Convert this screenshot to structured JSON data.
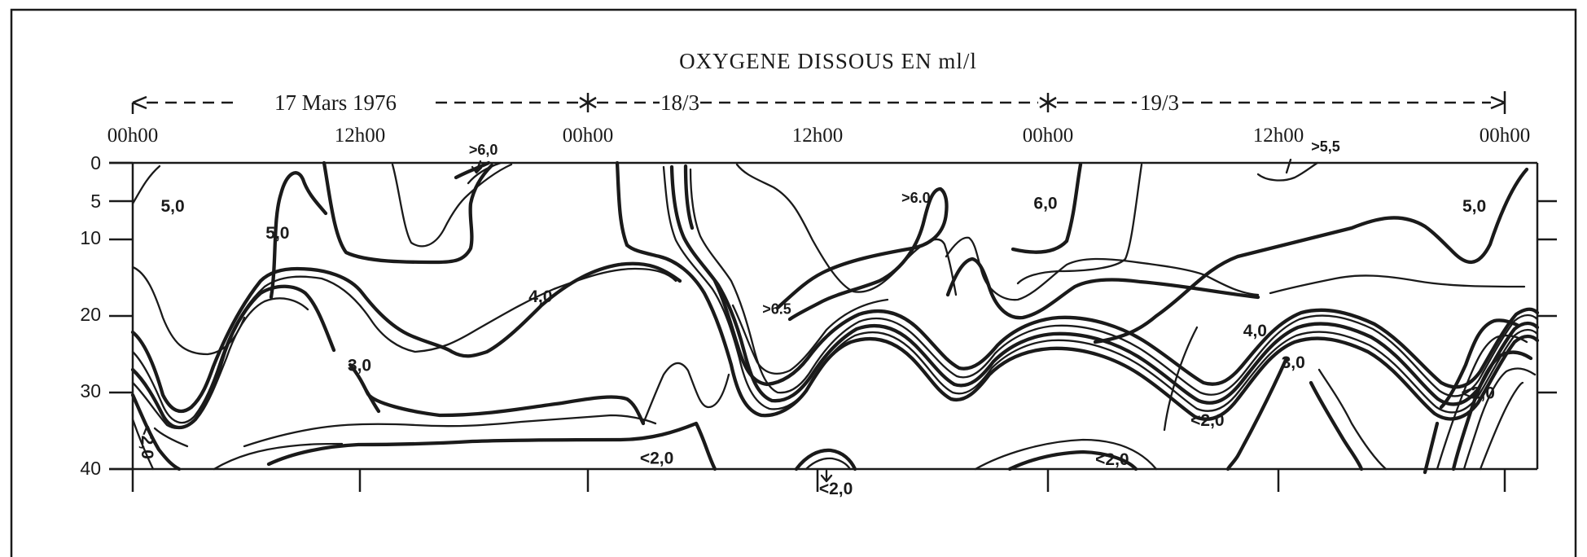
{
  "chart_data": {
    "type": "contour",
    "title": "OXYGENE DISSOUS EN ml/l",
    "date_headers": [
      "17 Mars 1976",
      "18/3",
      "19/3"
    ],
    "x_tick_labels": [
      "00h00",
      "12h00",
      "00h00",
      "12h00",
      "00h00",
      "12h00",
      "00h00"
    ],
    "x_hours": [
      0,
      12,
      24,
      36,
      48,
      60,
      72
    ],
    "xlim_hours": [
      0,
      72
    ],
    "y_tick_labels": [
      "0",
      "5",
      "10",
      "20",
      "30",
      "40"
    ],
    "y_depths": [
      0,
      5,
      10,
      20,
      30,
      40
    ],
    "ylim_depth": [
      0,
      40
    ],
    "y_inverted": true,
    "contour_labels": [
      {
        "text": "5,0",
        "hour": 7.6,
        "depth": 9.3
      },
      {
        "text": "5,0",
        "hour": 2.1,
        "depth": 5.8
      },
      {
        "text": "6,0",
        "hour": 47.9,
        "depth": 5.4
      },
      {
        "text": "5,0",
        "hour": 70.4,
        "depth": 5.8
      },
      {
        "text": "4,0",
        "hour": 21.4,
        "depth": 17.6
      },
      {
        "text": "3,0",
        "hour": 11.9,
        "depth": 26.6
      },
      {
        "text": "4,0",
        "hour": 58.9,
        "depth": 22.1
      },
      {
        "text": "3,0",
        "hour": 60.9,
        "depth": 26.2
      },
      {
        "text": "<2,0",
        "hour": 0.7,
        "depth": 36.5
      },
      {
        "text": "<2,0",
        "hour": 27.5,
        "depth": 38.7
      },
      {
        "text": "<2,0",
        "hour": 36.9,
        "depth": 42.7
      },
      {
        "text": "<2,0",
        "hour": 51.4,
        "depth": 38.9
      },
      {
        "text": "<2,0",
        "hour": 56.4,
        "depth": 33.8
      },
      {
        "text": "<2,0",
        "hour": 70.6,
        "depth": 30.2
      }
    ],
    "annotation_labels": [
      {
        "text": ">6,0",
        "hour": 18.4,
        "depth": -1.6
      },
      {
        "text": ">6.0",
        "hour": 41.1,
        "depth": 4.7
      },
      {
        "text": ">6.5",
        "hour": 33.8,
        "depth": 19.2
      },
      {
        "text": ">5,5",
        "hour": 62.6,
        "depth": -2.0
      }
    ]
  }
}
